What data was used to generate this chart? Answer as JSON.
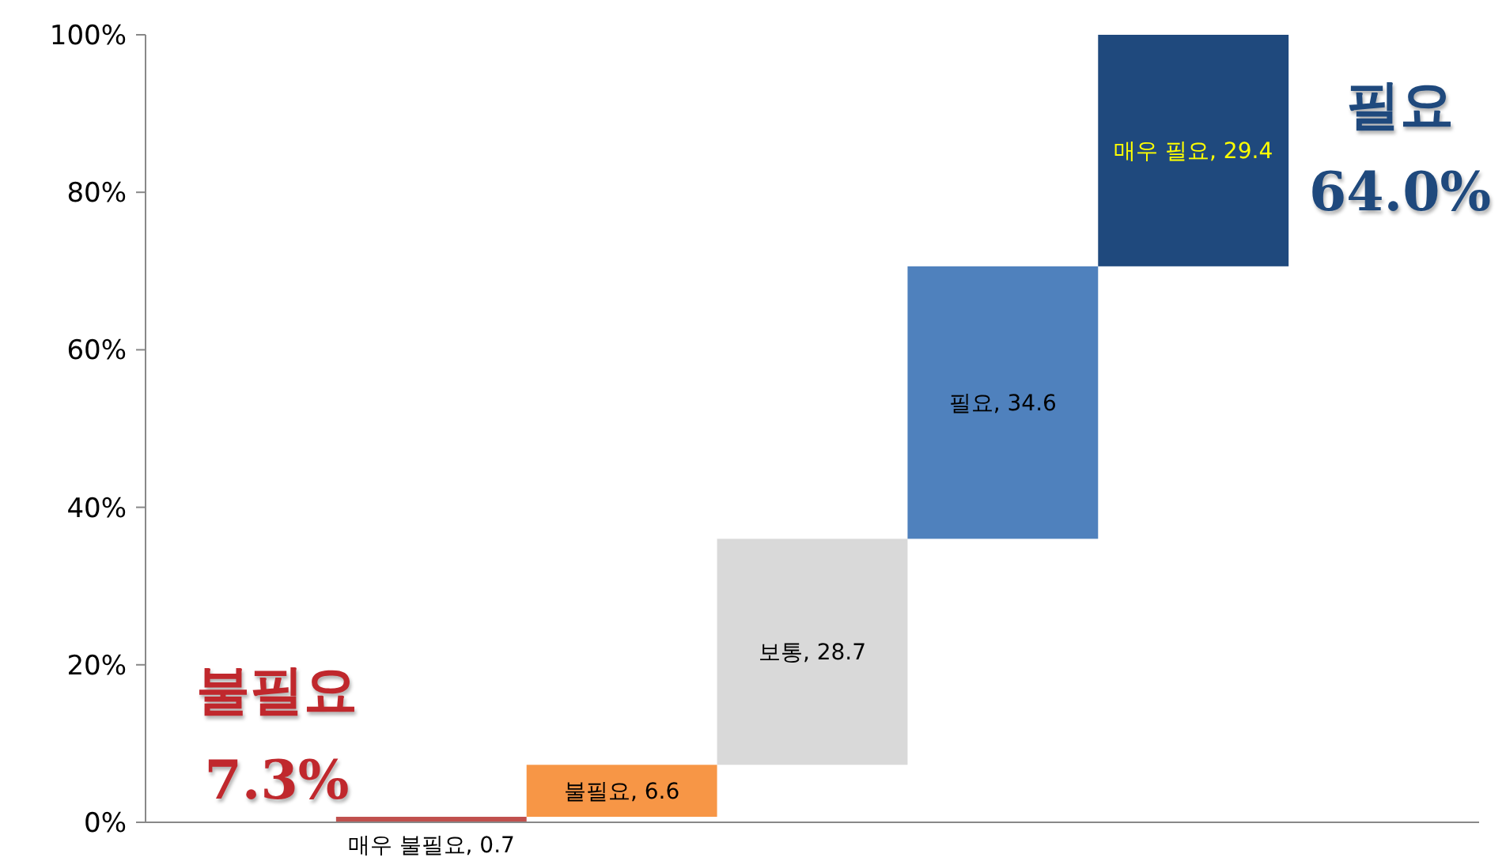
{
  "chart_data": {
    "type": "bar",
    "categories": [
      null,
      null,
      null,
      null,
      null,
      null,
      null
    ],
    "values": [
      null,
      0.7,
      6.6,
      28.7,
      34.6,
      29.4,
      null
    ],
    "base": [
      null,
      0,
      0.7,
      7.3,
      36.0,
      70.6,
      null
    ],
    "colors": [
      null,
      "#c0504d",
      "#f79646",
      "#d9d9d9",
      "#4f81bd",
      "#1f497d",
      null
    ],
    "value_labels": [
      null,
      "매우 불필요, 0.7",
      "불필요, 6.6",
      "보통, 28.7",
      "필요, 34.6",
      "매우 필요, 29.4",
      null
    ],
    "ylim": [
      0,
      100
    ],
    "yticks": [
      {
        "value": 0,
        "label": "0%"
      },
      {
        "value": 20,
        "label": "20%"
      },
      {
        "value": 40,
        "label": "40%"
      },
      {
        "value": 60,
        "label": "60%"
      },
      {
        "value": 80,
        "label": "80%"
      },
      {
        "value": 100,
        "label": "100%"
      }
    ],
    "grid": false,
    "annotations": [
      "불필요",
      "7.3%",
      "필요",
      "64.0%"
    ]
  }
}
